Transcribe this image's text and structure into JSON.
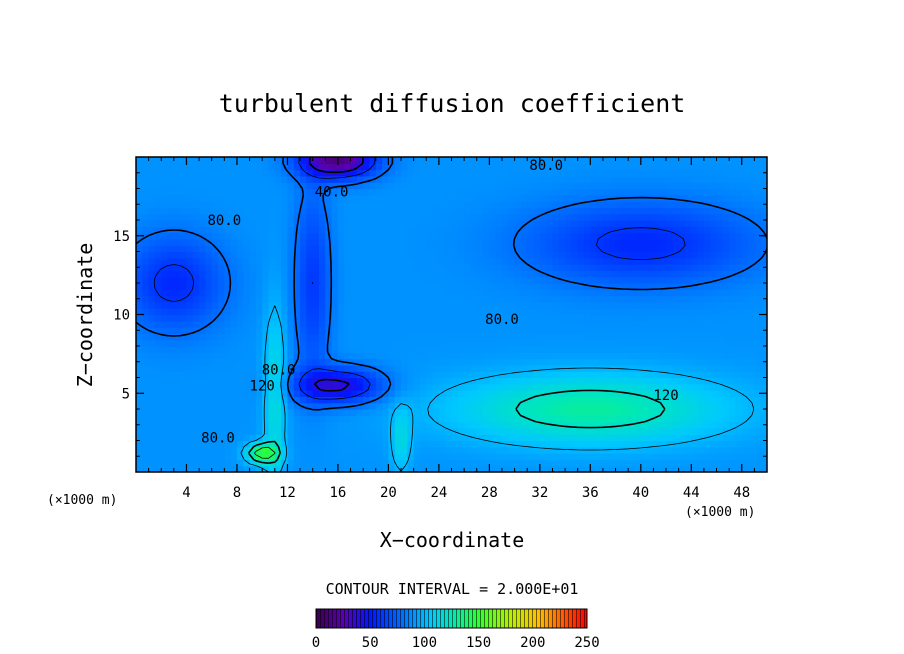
{
  "chart_data": {
    "type": "heatmap",
    "title": "turbulent diffusion coefficient",
    "xlabel": "X−coordinate",
    "ylabel": "Z−coordinate",
    "x_unit": "(×1000 m)",
    "z_unit": "(×1000 m)",
    "xlim": [
      0,
      50
    ],
    "ylim": [
      0,
      20
    ],
    "x_ticks": [
      4,
      8,
      12,
      16,
      20,
      24,
      28,
      32,
      36,
      40,
      44,
      48
    ],
    "y_ticks": [
      5,
      10,
      15
    ],
    "contour_interval_text": "CONTOUR INTERVAL = 2.000E+01",
    "contour_interval": 20,
    "contour_labels": [
      {
        "text": "80.0",
        "x": 32.5,
        "z": 19.5
      },
      {
        "text": "40.0",
        "x": 15.5,
        "z": 17.8
      },
      {
        "text": "80.0",
        "x": 7.0,
        "z": 16.0
      },
      {
        "text": "80.0",
        "x": 29.0,
        "z": 9.7
      },
      {
        "text": "120",
        "x": 10.0,
        "z": 5.5
      },
      {
        "text": "80.0",
        "x": 11.3,
        "z": 6.5
      },
      {
        "text": "120",
        "x": 42.0,
        "z": 4.9
      },
      {
        "text": "80.0",
        "x": 6.5,
        "z": 2.2
      }
    ],
    "colorbar": {
      "min": 0,
      "max": 250,
      "ticks": [
        0,
        50,
        100,
        150,
        200,
        250
      ]
    },
    "field_features": [
      {
        "kind": "max",
        "x": 36,
        "z": 4,
        "value": 130
      },
      {
        "kind": "min",
        "x": 16,
        "z": 5.5,
        "value": 35
      },
      {
        "kind": "min",
        "x": 16,
        "z": 19.8,
        "value": 10
      },
      {
        "kind": "min",
        "x": 3,
        "z": 12,
        "value": 55
      },
      {
        "kind": "min",
        "x": 40,
        "z": 14.5,
        "value": 55
      },
      {
        "kind": "max",
        "x": 10,
        "z": 1.2,
        "value": 155
      }
    ]
  }
}
